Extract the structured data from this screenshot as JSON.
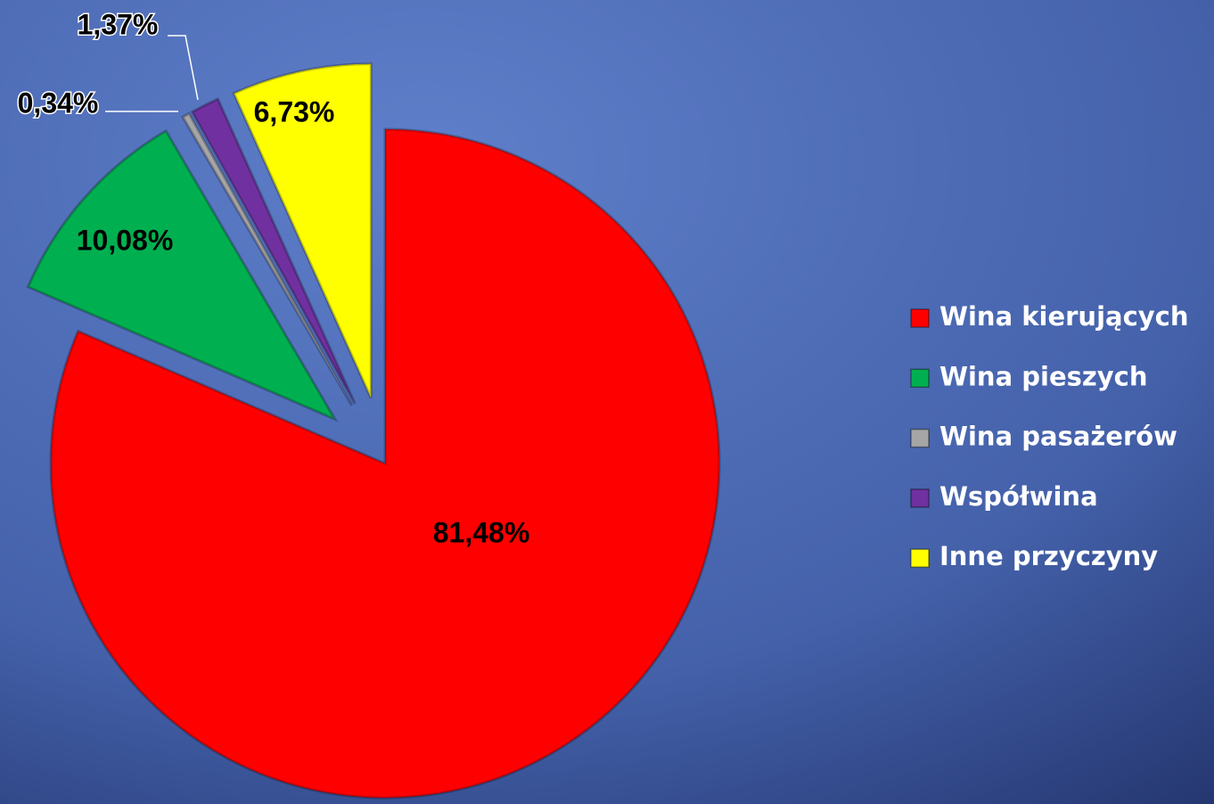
{
  "chart_data": {
    "type": "pie",
    "categories": [
      "Wina kierujących",
      "Wina pieszych",
      "Wina pasażerów",
      "Współwina",
      "Inne przyczyny"
    ],
    "values": [
      81.48,
      10.08,
      0.34,
      1.37,
      6.73
    ],
    "value_labels": [
      "81,48%",
      "10,08%",
      "0,34%",
      "1,37%",
      "6,73%"
    ],
    "colors": [
      "#ff0000",
      "#00b050",
      "#a6a6a6",
      "#7030a0",
      "#ffff00"
    ],
    "legend": "right"
  }
}
